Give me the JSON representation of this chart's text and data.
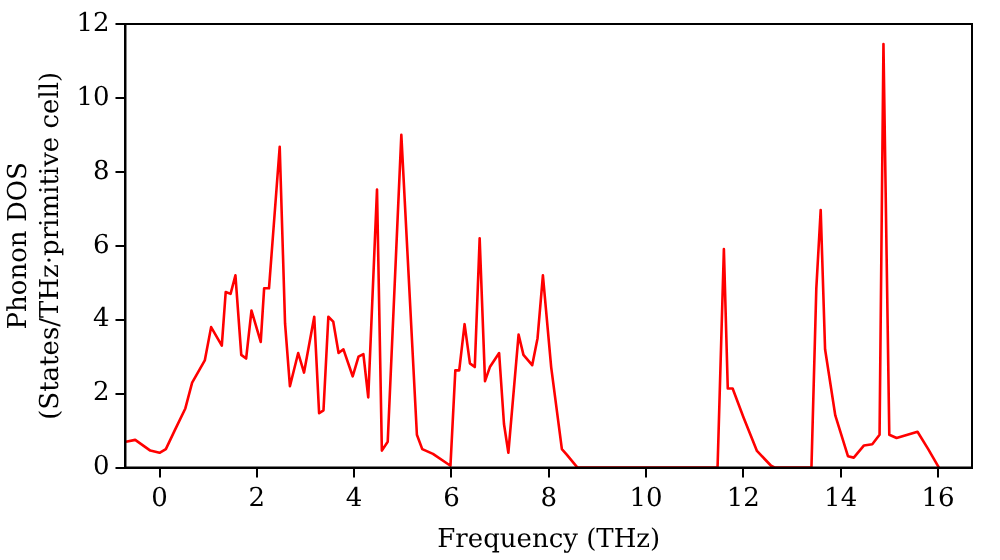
{
  "chart_data": {
    "type": "line",
    "xlabel": "Frequency (THz)",
    "ylabel": "Phonon DOS\n(States/THz·primitive cell)",
    "x": [
      -0.69,
      -0.5,
      -0.19,
      0,
      0.13,
      0.31,
      0.53,
      0.67,
      0.93,
      1.06,
      1.28,
      1.36,
      1.46,
      1.56,
      1.68,
      1.78,
      1.89,
      2.08,
      2.15,
      2.25,
      2.47,
      2.58,
      2.68,
      2.85,
      2.97,
      3.18,
      3.28,
      3.37,
      3.47,
      3.57,
      3.68,
      3.78,
      3.97,
      4.09,
      4.19,
      4.29,
      4.47,
      4.57,
      4.69,
      4.97,
      5.29,
      5.4,
      5.62,
      5.98,
      6.08,
      6.16,
      6.27,
      6.38,
      6.48,
      6.58,
      6.69,
      6.79,
      6.98,
      7.08,
      7.17,
      7.38,
      7.48,
      7.66,
      7.77,
      7.88,
      8.05,
      8.27,
      8.37,
      8.59,
      11.47,
      11.6,
      11.68,
      11.78,
      12.0,
      12.28,
      12.57,
      12.65,
      13.4,
      13.5,
      13.59,
      13.68,
      13.89,
      14.15,
      14.27,
      14.48,
      14.65,
      14.8,
      14.88,
      15.0,
      15.15,
      15.58,
      15.8,
      16.02
    ],
    "series": [
      {
        "color": "#ff0000",
        "values": [
          0.7,
          0.75,
          0.46,
          0.4,
          0.5,
          1.0,
          1.6,
          2.3,
          2.9,
          3.8,
          3.3,
          4.75,
          4.7,
          5.2,
          3.05,
          2.95,
          4.25,
          3.4,
          4.85,
          4.85,
          8.68,
          3.9,
          2.2,
          3.1,
          2.57,
          4.08,
          1.47,
          1.55,
          4.08,
          3.95,
          3.1,
          3.2,
          2.47,
          3.0,
          3.07,
          1.9,
          7.52,
          0.46,
          0.7,
          9.0,
          0.89,
          0.5,
          0.37,
          0.05,
          2.63,
          2.63,
          3.88,
          2.82,
          2.72,
          6.2,
          2.34,
          2.72,
          3.1,
          1.18,
          0.4,
          3.6,
          3.05,
          2.77,
          3.5,
          5.2,
          2.72,
          0.5,
          0.35,
          0,
          0,
          5.91,
          2.14,
          2.14,
          1.37,
          0.45,
          0.05,
          0,
          0,
          4.85,
          6.97,
          3.2,
          1.41,
          0.31,
          0.27,
          0.6,
          0.63,
          0.89,
          11.46,
          0.89,
          0.8,
          0.97,
          0.5,
          0
        ]
      }
    ],
    "xlim": [
      -0.7,
      16.7
    ],
    "xticks": [
      0,
      2,
      4,
      6,
      8,
      10,
      12,
      14,
      16
    ],
    "ylim": [
      0,
      12
    ],
    "yticks": [
      0,
      2,
      4,
      6,
      8,
      10,
      12
    ],
    "grid": false,
    "legend": false,
    "marker": "none",
    "line_style": "solid"
  }
}
